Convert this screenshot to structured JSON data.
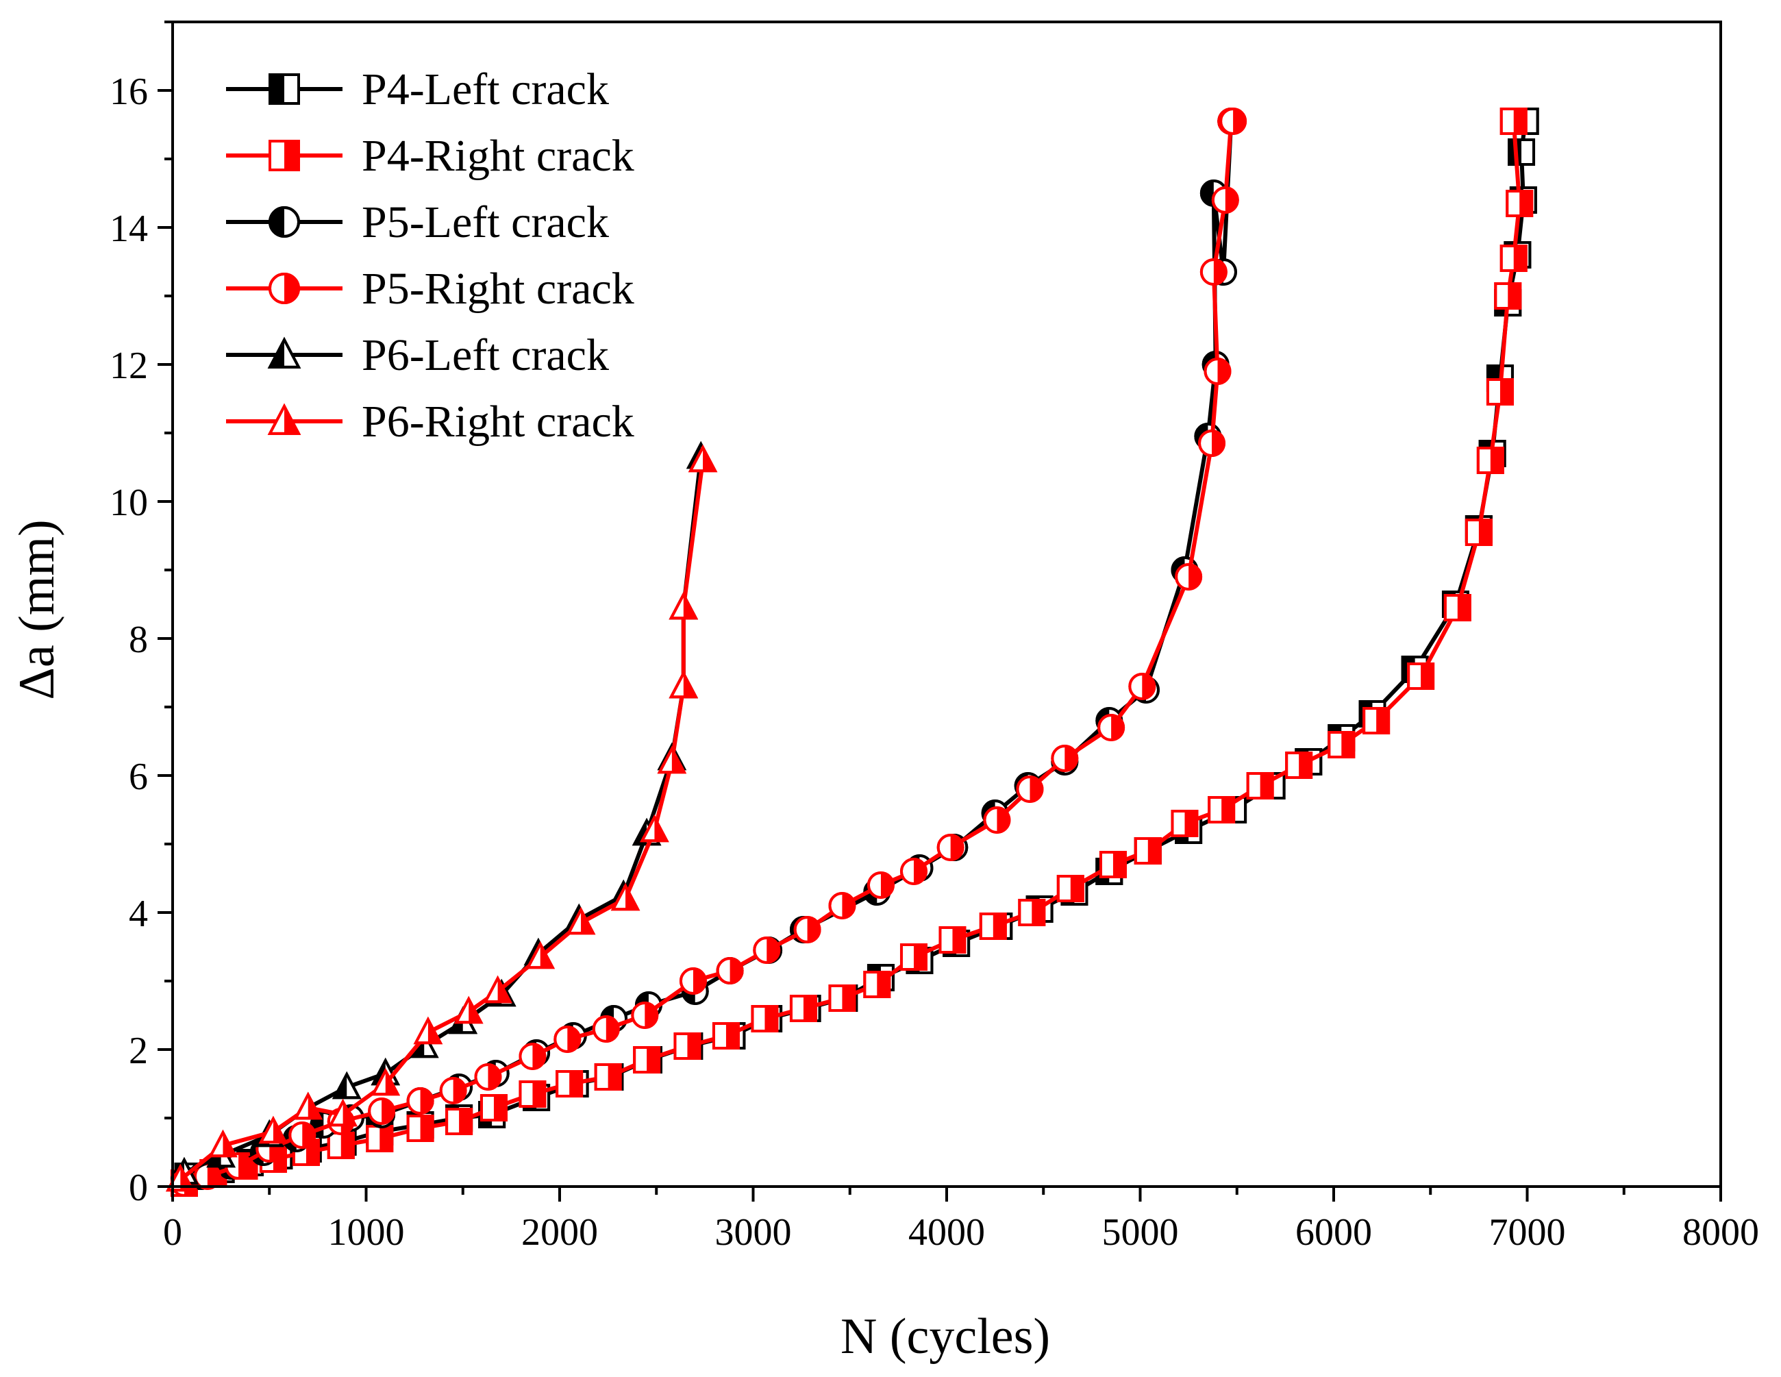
{
  "chart_data": {
    "type": "line",
    "title": "",
    "xlabel": "N  (cycles)",
    "ylabel": "Δa (mm)",
    "xlim": [
      0,
      8000
    ],
    "ylim": [
      0,
      17
    ],
    "xticks": [
      0,
      1000,
      2000,
      3000,
      4000,
      5000,
      6000,
      7000,
      8000
    ],
    "yticks": [
      0,
      2,
      4,
      6,
      8,
      10,
      12,
      14,
      16
    ],
    "grid": false,
    "legend_position": "top-left",
    "series": [
      {
        "name": "P4-Left crack",
        "color": "#000000",
        "marker": "square",
        "fill": "left",
        "x": [
          80,
          250,
          400,
          550,
          700,
          880,
          1070,
          1280,
          1480,
          1650,
          1880,
          2080,
          2260,
          2460,
          2670,
          2890,
          3080,
          3280,
          3470,
          3660,
          3860,
          4050,
          4270,
          4480,
          4660,
          4840,
          5040,
          5250,
          5480,
          5680,
          5870,
          6040,
          6200,
          6420,
          6630,
          6750,
          6820,
          6860,
          6900,
          6950,
          6980,
          6970,
          6990
        ],
        "y": [
          0.15,
          0.25,
          0.35,
          0.45,
          0.55,
          0.65,
          0.8,
          0.9,
          1.0,
          1.05,
          1.3,
          1.5,
          1.6,
          1.85,
          2.05,
          2.2,
          2.45,
          2.6,
          2.75,
          3.05,
          3.3,
          3.55,
          3.8,
          4.05,
          4.3,
          4.6,
          4.9,
          5.2,
          5.5,
          5.85,
          6.2,
          6.55,
          6.9,
          7.55,
          8.5,
          9.6,
          10.7,
          11.8,
          12.9,
          13.6,
          14.4,
          15.1,
          15.55
        ]
      },
      {
        "name": "P4-Right crack",
        "color": "#ff0000",
        "marker": "square",
        "fill": "right",
        "x": [
          60,
          210,
          370,
          520,
          690,
          870,
          1070,
          1280,
          1480,
          1660,
          1860,
          2050,
          2250,
          2450,
          2660,
          2860,
          3060,
          3260,
          3460,
          3640,
          3830,
          4030,
          4240,
          4440,
          4640,
          4860,
          5040,
          5230,
          5420,
          5620,
          5820,
          6040,
          6220,
          6450,
          6640,
          6750,
          6810,
          6860,
          6900,
          6930,
          6960,
          6930
        ],
        "y": [
          0.05,
          0.2,
          0.3,
          0.4,
          0.5,
          0.6,
          0.7,
          0.85,
          0.95,
          1.15,
          1.35,
          1.5,
          1.6,
          1.85,
          2.05,
          2.2,
          2.45,
          2.6,
          2.75,
          2.95,
          3.35,
          3.6,
          3.8,
          4.0,
          4.35,
          4.7,
          4.9,
          5.3,
          5.5,
          5.85,
          6.15,
          6.45,
          6.8,
          7.45,
          8.45,
          9.55,
          10.6,
          11.6,
          13.0,
          13.55,
          14.35,
          15.55
        ]
      },
      {
        "name": "P5-Left crack",
        "color": "#000000",
        "marker": "circle",
        "fill": "left",
        "x": [
          60,
          150,
          300,
          470,
          640,
          780,
          920,
          1080,
          1280,
          1480,
          1670,
          1880,
          2070,
          2280,
          2460,
          2700,
          2880,
          3080,
          3260,
          3640,
          3860,
          4040,
          4250,
          4420,
          4610,
          4840,
          5030,
          5230,
          5350,
          5390,
          5380,
          5430,
          5470
        ],
        "y": [
          0.1,
          0.15,
          0.3,
          0.5,
          0.7,
          0.9,
          1.0,
          1.05,
          1.25,
          1.45,
          1.65,
          1.95,
          2.2,
          2.45,
          2.65,
          2.85,
          3.15,
          3.45,
          3.75,
          4.3,
          4.65,
          4.95,
          5.45,
          5.85,
          6.2,
          6.8,
          7.25,
          9.0,
          10.95,
          12.0,
          14.5,
          13.35,
          15.55
        ]
      },
      {
        "name": "P5-Right crack",
        "color": "#ff0000",
        "marker": "circle",
        "fill": "right",
        "x": [
          60,
          180,
          340,
          500,
          670,
          870,
          1080,
          1280,
          1450,
          1630,
          1860,
          2040,
          2240,
          2440,
          2690,
          2880,
          3070,
          3280,
          3460,
          3660,
          3830,
          4020,
          4260,
          4430,
          4610,
          4850,
          5010,
          5250,
          5370,
          5400,
          5380,
          5440,
          5470,
          5480
        ],
        "y": [
          0.05,
          0.15,
          0.3,
          0.55,
          0.75,
          0.95,
          1.1,
          1.25,
          1.4,
          1.6,
          1.9,
          2.15,
          2.3,
          2.5,
          3.0,
          3.15,
          3.45,
          3.75,
          4.1,
          4.4,
          4.6,
          4.95,
          5.35,
          5.8,
          6.25,
          6.7,
          7.3,
          8.9,
          10.85,
          11.9,
          13.35,
          14.4,
          15.55,
          15.55
        ]
      },
      {
        "name": "P6-Left crack",
        "color": "#000000",
        "marker": "triangle",
        "fill": "left",
        "x": [
          60,
          250,
          500,
          700,
          900,
          1100,
          1300,
          1500,
          1700,
          1890,
          2100,
          2330,
          2450,
          2580,
          2640,
          2640,
          2730
        ],
        "y": [
          0.2,
          0.45,
          0.75,
          1.15,
          1.45,
          1.65,
          2.05,
          2.4,
          2.8,
          3.4,
          3.9,
          4.25,
          5.15,
          6.25,
          7.3,
          8.45,
          10.65
        ]
      },
      {
        "name": "P6-Right crack",
        "color": "#ff0000",
        "marker": "triangle",
        "fill": "right",
        "x": [
          40,
          260,
          520,
          700,
          880,
          1100,
          1320,
          1530,
          1680,
          1900,
          2110,
          2340,
          2490,
          2580,
          2640,
          2640,
          2740
        ],
        "y": [
          0.1,
          0.6,
          0.8,
          1.15,
          1.05,
          1.5,
          2.25,
          2.55,
          2.85,
          3.35,
          3.85,
          4.2,
          5.2,
          6.2,
          7.3,
          8.45,
          10.6
        ]
      }
    ]
  }
}
